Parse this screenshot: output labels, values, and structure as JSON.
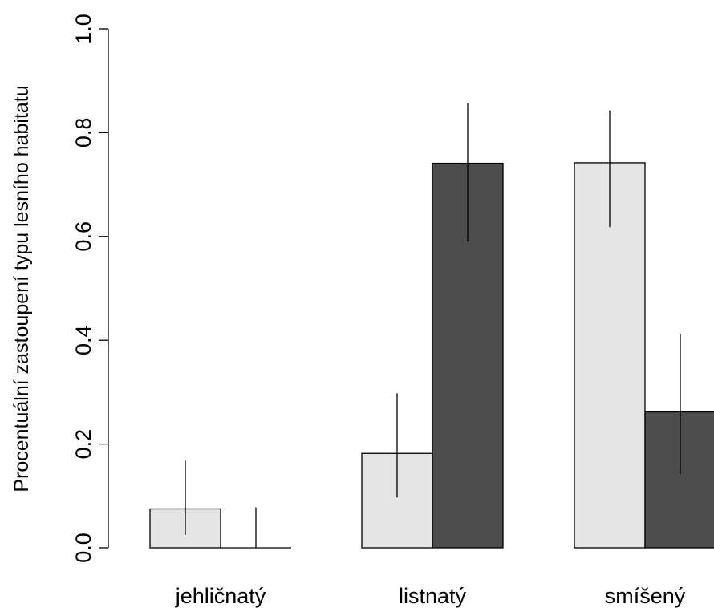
{
  "chart_data": {
    "type": "bar",
    "title": "",
    "xlabel": "",
    "ylabel": "Procentuální zastoupení typu lesního habitatu",
    "categories": [
      "jehličnatý",
      "listnatý",
      "smíšený"
    ],
    "ylim": [
      0,
      1
    ],
    "yticks": [
      "0.0",
      "0.2",
      "0.4",
      "0.6",
      "0.8",
      "1.0"
    ],
    "grid": false,
    "legend": "none",
    "series": [
      {
        "color": "#e5e5e5",
        "values": [
          0.075,
          0.182,
          0.742
        ],
        "error_low": [
          0.025,
          0.097,
          0.618
        ],
        "error_high": [
          0.168,
          0.298,
          0.843
        ]
      },
      {
        "color": "#4d4d4d",
        "values": [
          0.0,
          0.741,
          0.262
        ],
        "error_low": [
          0.0,
          0.59,
          0.142
        ],
        "error_high": [
          0.078,
          0.857,
          0.413
        ]
      }
    ]
  }
}
